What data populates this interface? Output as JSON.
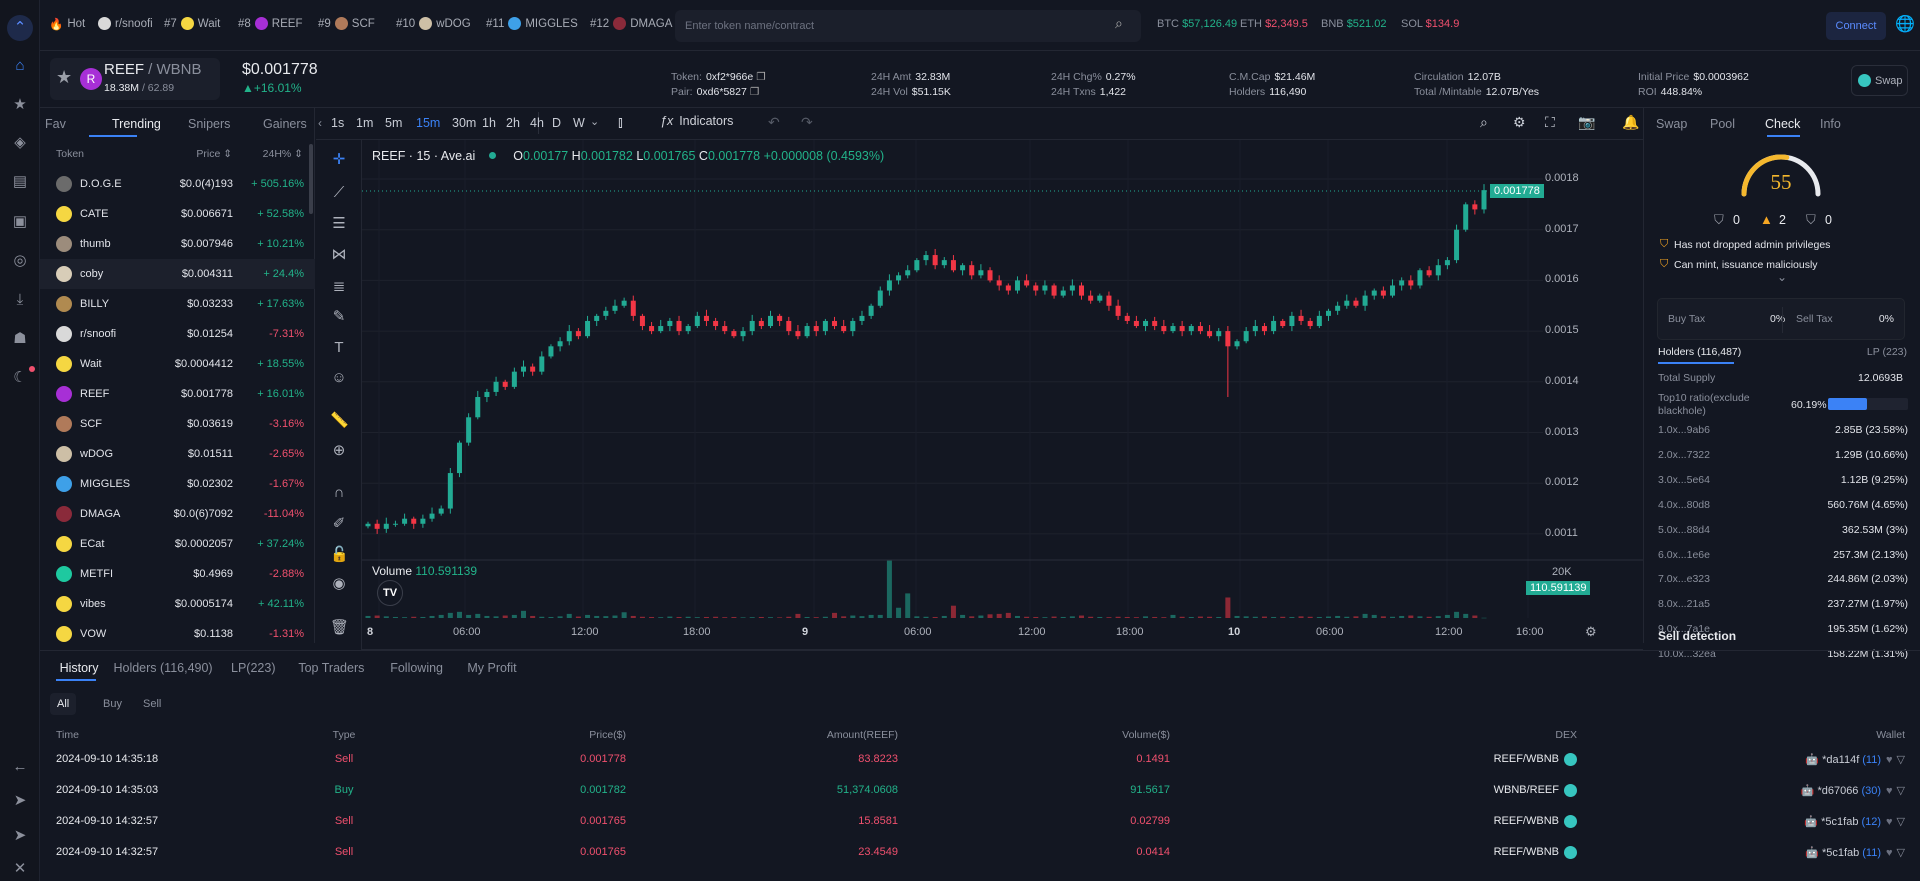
{
  "rail": {
    "icons": [
      "logo-icon",
      "chart-icon",
      "star-icon",
      "compass-icon",
      "layout-icon",
      "wallet-icon",
      "target-icon",
      "download-icon",
      "robot-icon",
      "moon-icon"
    ],
    "bottom_icons": [
      "back-icon",
      "telegram-icon",
      "telegram-icon",
      "x-icon"
    ]
  },
  "topbar": {
    "hot": "Hot",
    "tags": [
      {
        "rank": "",
        "name": "r/snoofi",
        "color": "#d9d9d9"
      },
      {
        "rank": "#7",
        "name": "Wait",
        "color": "#f5d742"
      },
      {
        "rank": "#8",
        "name": "REEF",
        "color": "#a72fd6"
      },
      {
        "rank": "#9",
        "name": "SCF",
        "color": "#b07a5a"
      },
      {
        "rank": "#10",
        "name": "wDOG",
        "color": "#cdbfa6"
      },
      {
        "rank": "#11",
        "name": "MIGGLES",
        "color": "#3ea0e8"
      },
      {
        "rank": "#12",
        "name": "DMAGA",
        "color": "#8a2a3a"
      }
    ],
    "search_placeholder": "Enter token name/contract",
    "tickers": [
      {
        "sym": "BTC",
        "price": "$57,126.49",
        "dir": "g"
      },
      {
        "sym": "ETH",
        "price": "$2,349.5",
        "dir": "r"
      },
      {
        "sym": "BNB",
        "price": "$521.02",
        "dir": "g"
      },
      {
        "sym": "SOL",
        "price": "$134.9",
        "dir": "r"
      }
    ],
    "connect": "Connect"
  },
  "token": {
    "base": "REEF",
    "quote": " / WBNB",
    "sub1": "18.38M",
    "sub2": " / 62.89",
    "price": "$0.001778",
    "change": "▲+16.01%",
    "stats": [
      [
        {
          "l": "Token:",
          "v": "0xf2*966e"
        },
        {
          "l": "Pair:",
          "v": "0xd6*5827"
        }
      ],
      [
        {
          "l": "24H Amt",
          "v": "32.83M"
        },
        {
          "l": "24H Vol",
          "v": "$51.15K"
        }
      ],
      [
        {
          "l": "24H Chg%",
          "v": "0.27%"
        },
        {
          "l": "24H Txns",
          "v": "1,422"
        }
      ],
      [
        {
          "l": "C.M.Cap",
          "v": "$21.46M"
        },
        {
          "l": "Holders",
          "v": "116,490"
        }
      ],
      [
        {
          "l": "Circulation",
          "v": "12.07B"
        },
        {
          "l": "Total /Mintable",
          "v": "12.07B/Yes"
        }
      ],
      [
        {
          "l": "Initial Price",
          "v": "$0.0003962"
        },
        {
          "l": "ROI",
          "v": "448.84%"
        }
      ]
    ],
    "swap": "Swap"
  },
  "left": {
    "tabs": [
      "Fav",
      "Trending",
      "Snipers",
      "Gainers"
    ],
    "active": 1,
    "cols": [
      "Token",
      "Price ⇕",
      "24H% ⇕"
    ],
    "tokens": [
      {
        "n": "D.O.G.E",
        "p": "$0.0(4)193",
        "c": "+ 505.16%",
        "d": "g",
        "col": "#6b6b6b"
      },
      {
        "n": "CATE",
        "p": "$0.006671",
        "c": "+ 52.58%",
        "d": "g",
        "col": "#f5d742"
      },
      {
        "n": "thumb",
        "p": "$0.007946",
        "c": "+ 10.21%",
        "d": "g",
        "col": "#9c8c7c"
      },
      {
        "n": "coby",
        "p": "$0.004311",
        "c": "+ 24.4%",
        "d": "g",
        "col": "#d8cdb8"
      },
      {
        "n": "BILLY",
        "p": "$0.03233",
        "c": "+ 17.63%",
        "d": "g",
        "col": "#b08a50"
      },
      {
        "n": "r/snoofi",
        "p": "$0.01254",
        "c": "-7.31%",
        "d": "r",
        "col": "#d9d9d9"
      },
      {
        "n": "Wait",
        "p": "$0.0004412",
        "c": "+ 18.55%",
        "d": "g",
        "col": "#f5d742"
      },
      {
        "n": "REEF",
        "p": "$0.001778",
        "c": "+ 16.01%",
        "d": "g",
        "col": "#a72fd6"
      },
      {
        "n": "SCF",
        "p": "$0.03619",
        "c": "-3.16%",
        "d": "r",
        "col": "#b07a5a"
      },
      {
        "n": "wDOG",
        "p": "$0.01511",
        "c": "-2.65%",
        "d": "r",
        "col": "#cdbfa6"
      },
      {
        "n": "MIGGLES",
        "p": "$0.02302",
        "c": "-1.67%",
        "d": "r",
        "col": "#3ea0e8"
      },
      {
        "n": "DMAGA",
        "p": "$0.0(6)7092",
        "c": "-11.04%",
        "d": "r",
        "col": "#8a2a3a"
      },
      {
        "n": "ECat",
        "p": "$0.0002057",
        "c": "+ 37.24%",
        "d": "g",
        "col": "#f5d742"
      },
      {
        "n": "METFI",
        "p": "$0.4969",
        "c": "-2.88%",
        "d": "r",
        "col": "#1ec9a0"
      },
      {
        "n": "vibes",
        "p": "$0.0005174",
        "c": "+ 42.11%",
        "d": "g",
        "col": "#f5d742"
      },
      {
        "n": "VOW",
        "p": "$0.1138",
        "c": "-1.31%",
        "d": "r",
        "col": "#f5d742"
      }
    ]
  },
  "toolbar": {
    "intervals": [
      "1s",
      "1m",
      "5m",
      "15m",
      "30m",
      "1h",
      "2h",
      "4h",
      "D",
      "W"
    ],
    "active": 3,
    "indicators": "Indicators"
  },
  "chart": {
    "type": "candlestick",
    "symbol": "REEF · 15 · Ave.ai",
    "o": "0.00177",
    "h": "0.001782",
    "l": "0.001765",
    "c": "0.001778",
    "chg": "+0.000008 (0.4593%)",
    "last_label": "0.001778",
    "volume_label": "Volume",
    "volume_value": "110.591139",
    "volume_tick": "20K",
    "y_ticks": [
      "0.0018",
      "0.0017",
      "0.0016",
      "0.0015",
      "0.0014",
      "0.0013",
      "0.0012",
      "0.0011"
    ],
    "x_ticks": [
      "8",
      "06:00",
      "12:00",
      "18:00",
      "9",
      "06:00",
      "12:00",
      "18:00",
      "10",
      "06:00",
      "12:00",
      "16:00"
    ],
    "price_scale": 0.001,
    "closes": [
      1.12,
      1.11,
      1.12,
      1.12,
      1.13,
      1.12,
      1.13,
      1.14,
      1.15,
      1.22,
      1.28,
      1.33,
      1.37,
      1.38,
      1.4,
      1.39,
      1.42,
      1.43,
      1.42,
      1.45,
      1.47,
      1.48,
      1.5,
      1.49,
      1.52,
      1.53,
      1.54,
      1.55,
      1.56,
      1.53,
      1.51,
      1.5,
      1.51,
      1.52,
      1.5,
      1.51,
      1.53,
      1.52,
      1.51,
      1.5,
      1.49,
      1.5,
      1.52,
      1.51,
      1.53,
      1.52,
      1.5,
      1.49,
      1.51,
      1.5,
      1.52,
      1.51,
      1.5,
      1.52,
      1.53,
      1.55,
      1.58,
      1.6,
      1.61,
      1.62,
      1.64,
      1.65,
      1.63,
      1.64,
      1.62,
      1.63,
      1.61,
      1.62,
      1.6,
      1.59,
      1.58,
      1.6,
      1.59,
      1.58,
      1.59,
      1.57,
      1.58,
      1.59,
      1.57,
      1.56,
      1.57,
      1.55,
      1.53,
      1.52,
      1.51,
      1.52,
      1.51,
      1.5,
      1.51,
      1.5,
      1.51,
      1.5,
      1.49,
      1.5,
      1.47,
      1.48,
      1.5,
      1.51,
      1.5,
      1.52,
      1.51,
      1.53,
      1.52,
      1.51,
      1.53,
      1.54,
      1.55,
      1.56,
      1.55,
      1.57,
      1.58,
      1.57,
      1.59,
      1.6,
      1.59,
      1.62,
      1.61,
      1.63,
      1.64,
      1.7,
      1.75,
      1.74,
      1.778
    ],
    "low_overrides": {
      "94": 1.37
    },
    "volume_k": [
      1,
      1.2,
      0.8,
      0.5,
      0.4,
      0.6,
      0.5,
      1,
      1.5,
      2.5,
      3,
      1.5,
      2,
      1,
      0.8,
      1.2,
      1.5,
      3.5,
      1,
      0.6,
      0.5,
      0.8,
      2,
      0.7,
      1.5,
      1,
      0.9,
      1.2,
      2.8,
      1,
      0.6,
      0.5,
      0.4,
      0.7,
      0.5,
      0.6,
      0.4,
      0.5,
      0.6,
      0.4,
      0.5,
      0.3,
      0.4,
      0.5,
      0.4,
      0.3,
      0.6,
      2,
      0.5,
      0.4,
      0.6,
      2.5,
      0.8,
      1.2,
      0.9,
      1.5,
      1.5,
      28,
      5,
      12,
      0.8,
      0.6,
      0.5,
      1,
      6,
      1.5,
      0.8,
      1.2,
      1.8,
      2,
      2.5,
      1,
      0.6,
      0.5,
      0.4,
      0.7,
      0.5,
      0.8,
      1.2,
      0.6,
      0.5,
      0.4,
      0.6,
      0.5,
      0.4,
      0.8,
      0.5,
      0.4,
      1.5,
      0.6,
      0.5,
      0.7,
      0.6,
      0.5,
      10,
      1,
      0.8,
      0.6,
      0.7,
      0.5,
      0.6,
      0.5,
      0.8,
      0.6,
      0.5,
      0.7,
      1,
      0.6,
      0.8,
      2,
      1.5,
      0.8,
      0.6,
      1,
      1.2,
      0.8,
      0.6,
      0.9,
      1.5,
      3,
      2,
      1.2,
      0.11
    ],
    "up_color": "#22ab94",
    "down_color": "#f23645"
  },
  "right": {
    "tabs": [
      "Swap",
      "Pool",
      "Check",
      "Info"
    ],
    "active": 2,
    "score": "55",
    "score_fraction": 0.55,
    "counts": [
      "0",
      "2",
      "0"
    ],
    "warnings": [
      "Has not dropped admin privileges",
      "Can mint, issuance maliciously"
    ],
    "buy_tax_label": "Buy Tax",
    "buy_tax": "0%",
    "sell_tax_label": "Sell Tax",
    "sell_tax": "0%",
    "holders_tab": "Holders (116,487)",
    "lp_tab": "LP (223)",
    "total_supply_label": "Total Supply",
    "total_supply": "12.0693B",
    "top10_label": "Top10 ratio(exclude blackhole)",
    "top10": "60.19%",
    "top10_fraction": 0.6019,
    "holders": [
      [
        "1.0x...9ab6",
        "2.85B (23.58%)"
      ],
      [
        "2.0x...7322",
        "1.29B (10.66%)"
      ],
      [
        "3.0x...5e64",
        "1.12B (9.25%)"
      ],
      [
        "4.0x...80d8",
        "560.76M (4.65%)"
      ],
      [
        "5.0x...88d4",
        "362.53M (3%)"
      ],
      [
        "6.0x...1e6e",
        "257.3M (2.13%)"
      ],
      [
        "7.0x...e323",
        "244.86M (2.03%)"
      ],
      [
        "8.0x...21a5",
        "237.27M (1.97%)"
      ],
      [
        "9.0x...7a1e",
        "195.35M (1.62%)"
      ],
      [
        "10.0x...32ea",
        "158.22M (1.31%)"
      ]
    ],
    "sell_detection": "Sell detection"
  },
  "bottom": {
    "tabs": [
      "History",
      "Holders (116,490)",
      "LP(223)",
      "Top Traders",
      "Following",
      "My Profit"
    ],
    "filters": [
      "All",
      "Buy",
      "Sell"
    ],
    "cols": [
      "Time",
      "Type",
      "Price($)",
      "Amount(REEF)",
      "Volume($)",
      "DEX",
      "Wallet"
    ],
    "rows": [
      {
        "t": "2024-09-10 14:35:18",
        "type": "Sell",
        "p": "0.001778",
        "a": "83.8223",
        "v": "0.1491",
        "dex": "REEF/WBNB",
        "wallet": "*da114f",
        "n": "(11)",
        "d": "r"
      },
      {
        "t": "2024-09-10 14:35:03",
        "type": "Buy",
        "p": "0.001782",
        "a": "51,374.0608",
        "v": "91.5617",
        "dex": "WBNB/REEF",
        "wallet": "*d67066",
        "n": "(30)",
        "d": "g"
      },
      {
        "t": "2024-09-10 14:32:57",
        "type": "Sell",
        "p": "0.001765",
        "a": "15.8581",
        "v": "0.02799",
        "dex": "REEF/WBNB",
        "wallet": "*5c1fab",
        "n": "(12)",
        "d": "r"
      },
      {
        "t": "2024-09-10 14:32:57",
        "type": "Sell",
        "p": "0.001765",
        "a": "23.4549",
        "v": "0.0414",
        "dex": "REEF/WBNB",
        "wallet": "*5c1fab",
        "n": "(11)",
        "d": "r"
      }
    ]
  }
}
